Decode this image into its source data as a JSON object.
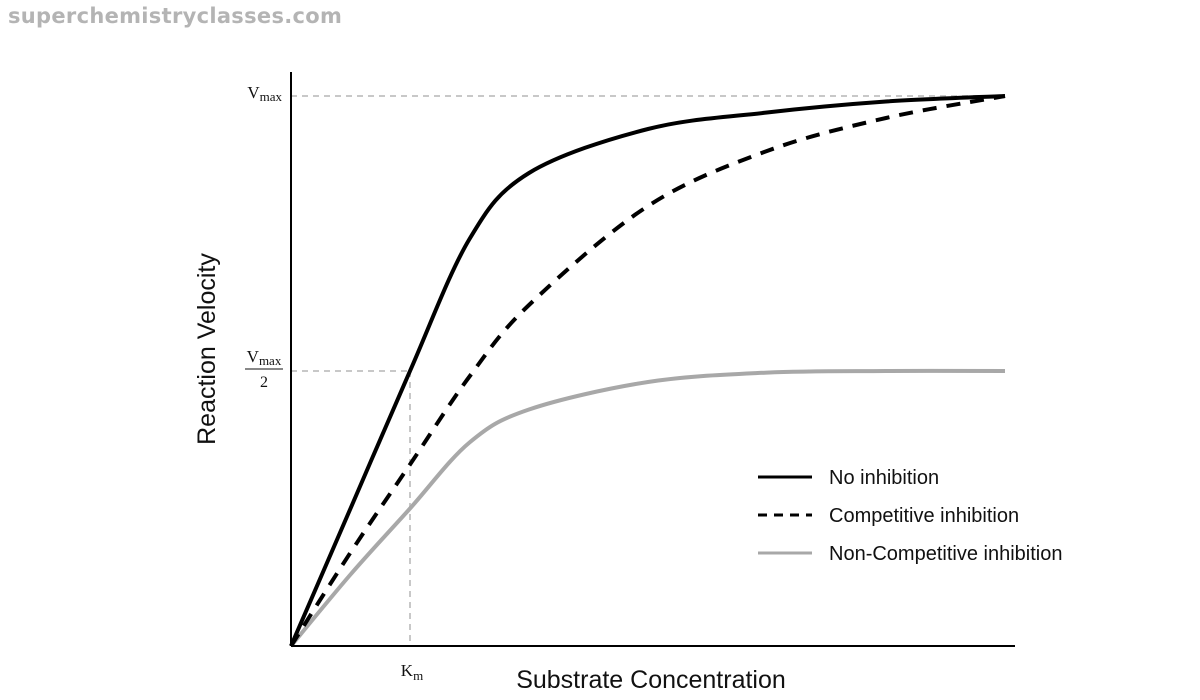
{
  "watermark": "superchemistryclasses.com",
  "chart_data": {
    "type": "line",
    "title": "",
    "xlabel": "Substrate Concentration",
    "ylabel": "Reaction Velocity",
    "ticks": {
      "vmax_main": "V",
      "vmax_sub": "max",
      "half_vmax_main": "V",
      "half_vmax_sub": "max",
      "half_vmax_den": "2",
      "km_main": "K",
      "km_sub": "m"
    },
    "xlim": [
      0,
      6
    ],
    "ylim": [
      0,
      1.07
    ],
    "vmax": 1.0,
    "km": 1.0,
    "legend_position": "bottom-right",
    "series": [
      {
        "name": "No inhibition",
        "style": "solid",
        "color": "#000000",
        "x": [
          0,
          0.5,
          1,
          1.5,
          2,
          3,
          4,
          5,
          6
        ],
        "y": [
          0,
          0.25,
          0.5,
          0.74,
          0.86,
          0.94,
          0.97,
          0.99,
          1.0
        ]
      },
      {
        "name": "Competitive inhibition",
        "style": "dashed",
        "color": "#000000",
        "x": [
          0,
          0.5,
          1,
          1.5,
          2,
          3,
          4,
          5,
          6
        ],
        "y": [
          0,
          0.17,
          0.33,
          0.49,
          0.62,
          0.8,
          0.9,
          0.96,
          1.0
        ]
      },
      {
        "name": "Non-Competitive inhibition",
        "style": "solid",
        "color": "#a8a8a8",
        "x": [
          0,
          0.5,
          1,
          1.5,
          2,
          3,
          4,
          5,
          6
        ],
        "y": [
          0,
          0.13,
          0.25,
          0.37,
          0.43,
          0.48,
          0.497,
          0.5,
          0.5
        ]
      }
    ]
  }
}
